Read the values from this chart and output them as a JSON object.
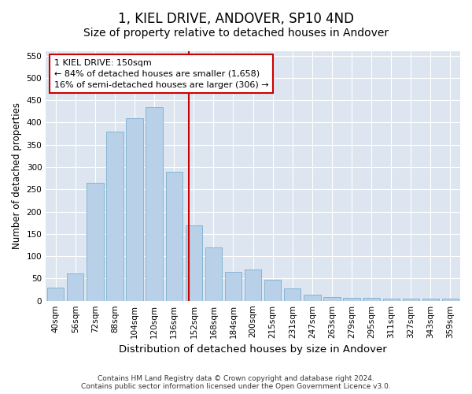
{
  "title": "1, KIEL DRIVE, ANDOVER, SP10 4ND",
  "subtitle": "Size of property relative to detached houses in Andover",
  "xlabel": "Distribution of detached houses by size in Andover",
  "ylabel": "Number of detached properties",
  "categories": [
    "40sqm",
    "56sqm",
    "72sqm",
    "88sqm",
    "104sqm",
    "120sqm",
    "136sqm",
    "152sqm",
    "168sqm",
    "184sqm",
    "200sqm",
    "215sqm",
    "231sqm",
    "247sqm",
    "263sqm",
    "279sqm",
    "295sqm",
    "311sqm",
    "327sqm",
    "343sqm",
    "359sqm"
  ],
  "values": [
    30,
    62,
    265,
    380,
    410,
    435,
    290,
    170,
    120,
    65,
    70,
    48,
    27,
    14,
    9,
    7,
    6,
    4,
    4,
    4,
    4
  ],
  "bar_color": "#b8d0e8",
  "bar_edge_color": "#7aafd0",
  "line_color": "#cc0000",
  "annotation_box_edge": "#cc0000",
  "plot_background": "#dde6f0",
  "ylim": [
    0,
    560
  ],
  "yticks": [
    0,
    50,
    100,
    150,
    200,
    250,
    300,
    350,
    400,
    450,
    500,
    550
  ],
  "property_line_label": "1 KIEL DRIVE: 150sqm",
  "annotation_line1": "← 84% of detached houses are smaller (1,658)",
  "annotation_line2": "16% of semi-detached houses are larger (306) →",
  "footer1": "Contains HM Land Registry data © Crown copyright and database right 2024.",
  "footer2": "Contains public sector information licensed under the Open Government Licence v3.0.",
  "title_fontsize": 12,
  "subtitle_fontsize": 10,
  "xlabel_fontsize": 9.5,
  "ylabel_fontsize": 8.5,
  "tick_fontsize": 7.5,
  "footer_fontsize": 6.5,
  "annot_fontsize": 8
}
